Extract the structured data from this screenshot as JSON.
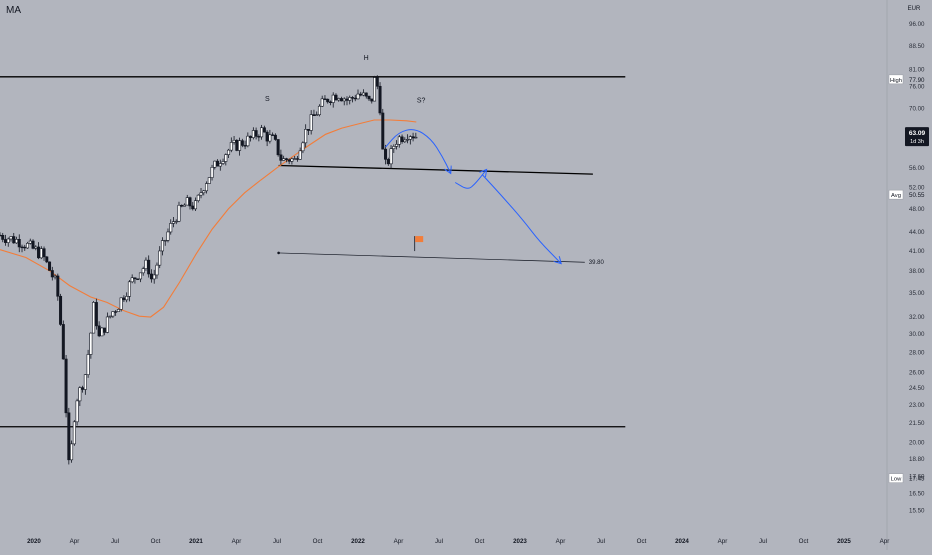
{
  "indicator_label": "MA",
  "chart_data": {
    "type": "candlestick",
    "currency": "EUR",
    "y_scale": "log",
    "ylim": [
      15.0,
      102.0
    ],
    "price_ticks": [
      "96.00",
      "88.50",
      "81.00",
      "76.00",
      "70.00",
      "63.00",
      "56.00",
      "52.00",
      "48.00",
      "44.00",
      "41.00",
      "38.00",
      "35.00",
      "32.00",
      "30.00",
      "28.00",
      "26.00",
      "24.50",
      "23.00",
      "21.50",
      "20.00",
      "18.80",
      "17.60",
      "16.50",
      "15.50"
    ],
    "time_ticks": [
      {
        "label": "2020",
        "t": 2020.0,
        "bold": true
      },
      {
        "label": "Apr",
        "t": 2020.25
      },
      {
        "label": "Jul",
        "t": 2020.5
      },
      {
        "label": "Oct",
        "t": 2020.75
      },
      {
        "label": "2021",
        "t": 2021.0,
        "bold": true
      },
      {
        "label": "Apr",
        "t": 2021.25
      },
      {
        "label": "Jul",
        "t": 2021.5
      },
      {
        "label": "Oct",
        "t": 2021.75
      },
      {
        "label": "2022",
        "t": 2022.0,
        "bold": true
      },
      {
        "label": "Apr",
        "t": 2022.25
      },
      {
        "label": "Jul",
        "t": 2022.5
      },
      {
        "label": "Oct",
        "t": 2022.75
      },
      {
        "label": "2023",
        "t": 2023.0,
        "bold": true
      },
      {
        "label": "Apr",
        "t": 2023.25
      },
      {
        "label": "Jul",
        "t": 2023.5
      },
      {
        "label": "Oct",
        "t": 2023.75
      },
      {
        "label": "2024",
        "t": 2024.0,
        "bold": true
      },
      {
        "label": "Apr",
        "t": 2024.25
      },
      {
        "label": "Jul",
        "t": 2024.5
      },
      {
        "label": "Oct",
        "t": 2024.75
      },
      {
        "label": "2025",
        "t": 2025.0,
        "bold": true
      },
      {
        "label": "Apr",
        "t": 2025.25
      }
    ],
    "price_path": [
      [
        2019.79,
        43.5
      ],
      [
        2019.85,
        43.0
      ],
      [
        2019.92,
        42.5
      ],
      [
        2019.98,
        41.5
      ],
      [
        2020.05,
        40.5
      ],
      [
        2020.1,
        38.0
      ],
      [
        2020.14,
        36.0
      ],
      [
        2020.16,
        32.0
      ],
      [
        2020.18,
        28.0
      ],
      [
        2020.2,
        22.0
      ],
      [
        2020.21,
        19.0
      ],
      [
        2020.22,
        17.6
      ],
      [
        2020.24,
        21.0
      ],
      [
        2020.26,
        23.5
      ],
      [
        2020.29,
        24.5
      ],
      [
        2020.32,
        26.0
      ],
      [
        2020.35,
        30.0
      ],
      [
        2020.37,
        33.5
      ],
      [
        2020.4,
        29.5
      ],
      [
        2020.44,
        31.0
      ],
      [
        2020.48,
        32.5
      ],
      [
        2020.52,
        33.5
      ],
      [
        2020.56,
        35.0
      ],
      [
        2020.6,
        36.5
      ],
      [
        2020.65,
        38.0
      ],
      [
        2020.7,
        39.0
      ],
      [
        2020.73,
        36.5
      ],
      [
        2020.77,
        40.0
      ],
      [
        2020.82,
        43.5
      ],
      [
        2020.88,
        47.0
      ],
      [
        2020.94,
        49.0
      ],
      [
        2021.0,
        48.5
      ],
      [
        2021.04,
        52.0
      ],
      [
        2021.1,
        55.5
      ],
      [
        2021.16,
        58.5
      ],
      [
        2021.22,
        60.5
      ],
      [
        2021.28,
        61.5
      ],
      [
        2021.34,
        62.5
      ],
      [
        2021.4,
        64.5
      ],
      [
        2021.44,
        63.0
      ],
      [
        2021.48,
        62.0
      ],
      [
        2021.53,
        57.5
      ],
      [
        2021.57,
        58.0
      ],
      [
        2021.61,
        57.5
      ],
      [
        2021.65,
        62.0
      ],
      [
        2021.7,
        66.0
      ],
      [
        2021.76,
        70.0
      ],
      [
        2021.82,
        73.0
      ],
      [
        2021.88,
        74.0
      ],
      [
        2021.94,
        72.0
      ],
      [
        2022.0,
        74.0
      ],
      [
        2022.04,
        73.0
      ],
      [
        2022.08,
        71.0
      ],
      [
        2022.1,
        77.9
      ],
      [
        2022.13,
        75.0
      ],
      [
        2022.15,
        60.0
      ],
      [
        2022.17,
        56.5
      ],
      [
        2022.2,
        58.5
      ],
      [
        2022.23,
        62.0
      ],
      [
        2022.27,
        63.0
      ],
      [
        2022.31,
        64.0
      ],
      [
        2022.36,
        63.09
      ]
    ],
    "moving_average": [
      [
        2019.79,
        41.2
      ],
      [
        2019.95,
        40.0
      ],
      [
        2020.1,
        38.0
      ],
      [
        2020.22,
        36.0
      ],
      [
        2020.35,
        34.5
      ],
      [
        2020.45,
        33.8
      ],
      [
        2020.55,
        32.8
      ],
      [
        2020.65,
        32.1
      ],
      [
        2020.72,
        32.0
      ],
      [
        2020.8,
        33.2
      ],
      [
        2020.9,
        36.5
      ],
      [
        2021.0,
        40.5
      ],
      [
        2021.1,
        44.5
      ],
      [
        2021.2,
        48.0
      ],
      [
        2021.3,
        51.0
      ],
      [
        2021.4,
        53.5
      ],
      [
        2021.5,
        56.0
      ],
      [
        2021.6,
        58.5
      ],
      [
        2021.7,
        61.0
      ],
      [
        2021.8,
        63.5
      ],
      [
        2021.9,
        65.0
      ],
      [
        2022.0,
        66.0
      ],
      [
        2022.1,
        67.0
      ],
      [
        2022.2,
        67.0
      ],
      [
        2022.3,
        66.8
      ],
      [
        2022.36,
        66.5
      ]
    ],
    "price_label": {
      "value": "63.09",
      "sub": "1d 3h"
    },
    "high_label": {
      "tag": "High",
      "value": "77.90",
      "price": 77.9
    },
    "avg_label": {
      "tag": "Avg",
      "value": "50.55",
      "price": 50.55
    },
    "low_label": {
      "tag": "Low",
      "value": "17.45",
      "price": 17.45
    },
    "annotations": [
      {
        "text": "S",
        "t": 2021.44,
        "price": 72.0
      },
      {
        "text": "H",
        "t": 2022.05,
        "price": 84.0
      },
      {
        "text": "S?",
        "t": 2022.39,
        "price": 71.5
      }
    ],
    "horizontal_lines": [
      {
        "price": 78.8,
        "t1": 2019.79,
        "t2": 2023.65
      },
      {
        "price": 21.2,
        "t1": 2019.79,
        "t2": 2023.65
      }
    ],
    "neckline": {
      "t1": 2021.51,
      "p1": 56.5,
      "t2": 2023.45,
      "p2": 54.7
    },
    "target_line": {
      "t1": 2021.51,
      "p1": 40.7,
      "t2": 2023.4,
      "p2": 39.3,
      "label": "39.80"
    },
    "flag_marker": {
      "t": 2022.35,
      "price": 41.6,
      "color": "#f27d3a"
    },
    "projection_paths": [
      [
        [
          2022.17,
          60.5
        ],
        [
          2022.25,
          64.0
        ],
        [
          2022.35,
          65.0
        ],
        [
          2022.45,
          62.5
        ],
        [
          2022.52,
          58.5
        ],
        [
          2022.57,
          55.0
        ]
      ],
      [
        [
          2022.6,
          53.0
        ],
        [
          2022.68,
          51.5
        ],
        [
          2022.73,
          53.0
        ],
        [
          2022.79,
          55.5
        ]
      ],
      [
        [
          2022.77,
          54.5
        ],
        [
          2022.9,
          50.0
        ],
        [
          2023.02,
          46.0
        ],
        [
          2023.12,
          42.5
        ],
        [
          2023.25,
          39.2
        ]
      ]
    ],
    "colors": {
      "background": "#b2b5be",
      "candle_body": "#ffffff",
      "candle_outline": "#131722",
      "moving_average": "#f27d3a",
      "projection": "#2962ff",
      "level_line": "#000000",
      "price_label_bg": "#131722"
    }
  }
}
